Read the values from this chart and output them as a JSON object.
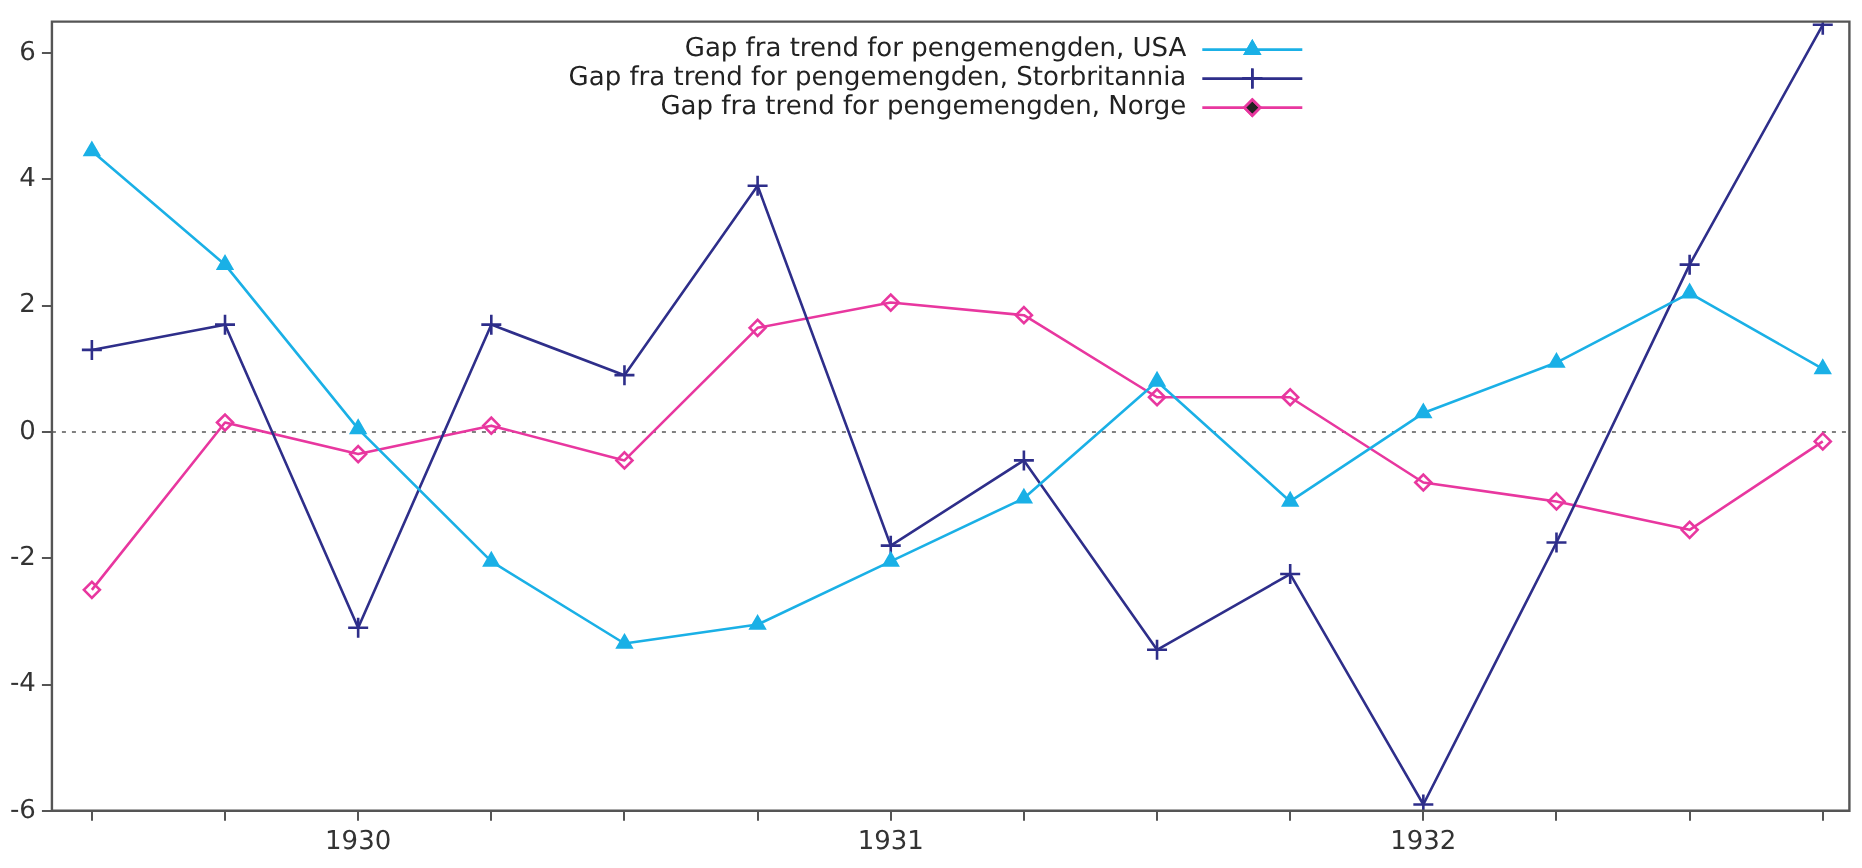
{
  "chart_data": {
    "type": "line",
    "x": [
      1929.5,
      1929.75,
      1930,
      1930.25,
      1930.5,
      1930.75,
      1931,
      1931.25,
      1931.5,
      1931.75,
      1932,
      1932.25,
      1932.5,
      1932.75
    ],
    "series": [
      {
        "name": "Gap fra trend for pengemengden, USA",
        "color": "#1ab0e6",
        "marker": "triangle",
        "values": [
          4.45,
          2.65,
          0.05,
          -2.05,
          -3.35,
          -3.05,
          -2.05,
          -1.05,
          0.8,
          -1.1,
          0.3,
          1.1,
          2.2,
          1.0
        ]
      },
      {
        "name": "Gap fra trend for pengemengden, Storbritannia",
        "color": "#2e2e8a",
        "marker": "cross",
        "values": [
          1.3,
          1.7,
          -3.1,
          1.7,
          0.9,
          3.9,
          -1.8,
          -0.45,
          -3.45,
          -2.25,
          -5.9,
          -1.75,
          2.65,
          6.45
        ]
      },
      {
        "name": "Gap fra trend for pengemengden, Norge",
        "color": "#e8379f",
        "marker": "diamond",
        "values": [
          -2.5,
          0.15,
          -0.35,
          0.1,
          -0.45,
          1.65,
          2.05,
          1.85,
          0.55,
          0.55,
          -0.8,
          -1.1,
          -1.55,
          -0.15
        ]
      }
    ],
    "xlim": [
      1929.425,
      1932.8
    ],
    "xticks": [
      {
        "value": 1929.5,
        "label": null
      },
      {
        "value": 1929.75,
        "label": null
      },
      1930,
      {
        "value": 1930.25,
        "label": null
      },
      {
        "value": 1930.5,
        "label": null
      },
      {
        "value": 1930.75,
        "label": null
      },
      1931,
      {
        "value": 1931.25,
        "label": null
      },
      {
        "value": 1931.5,
        "label": null
      },
      {
        "value": 1931.75,
        "label": null
      },
      1932,
      {
        "value": 1932.25,
        "label": null
      },
      {
        "value": 1932.5,
        "label": null
      },
      {
        "value": 1932.75,
        "label": null
      }
    ],
    "ylim": [
      -6,
      6.5
    ],
    "yticks": [
      -6,
      -4,
      -2,
      0,
      2,
      4,
      6
    ],
    "ref_lines": [
      {
        "axis": "y",
        "value": 0,
        "label": null,
        "color": "#808080",
        "line_style": "dotted"
      }
    ],
    "grid": false,
    "legend": "top right",
    "line_style": "solid"
  }
}
